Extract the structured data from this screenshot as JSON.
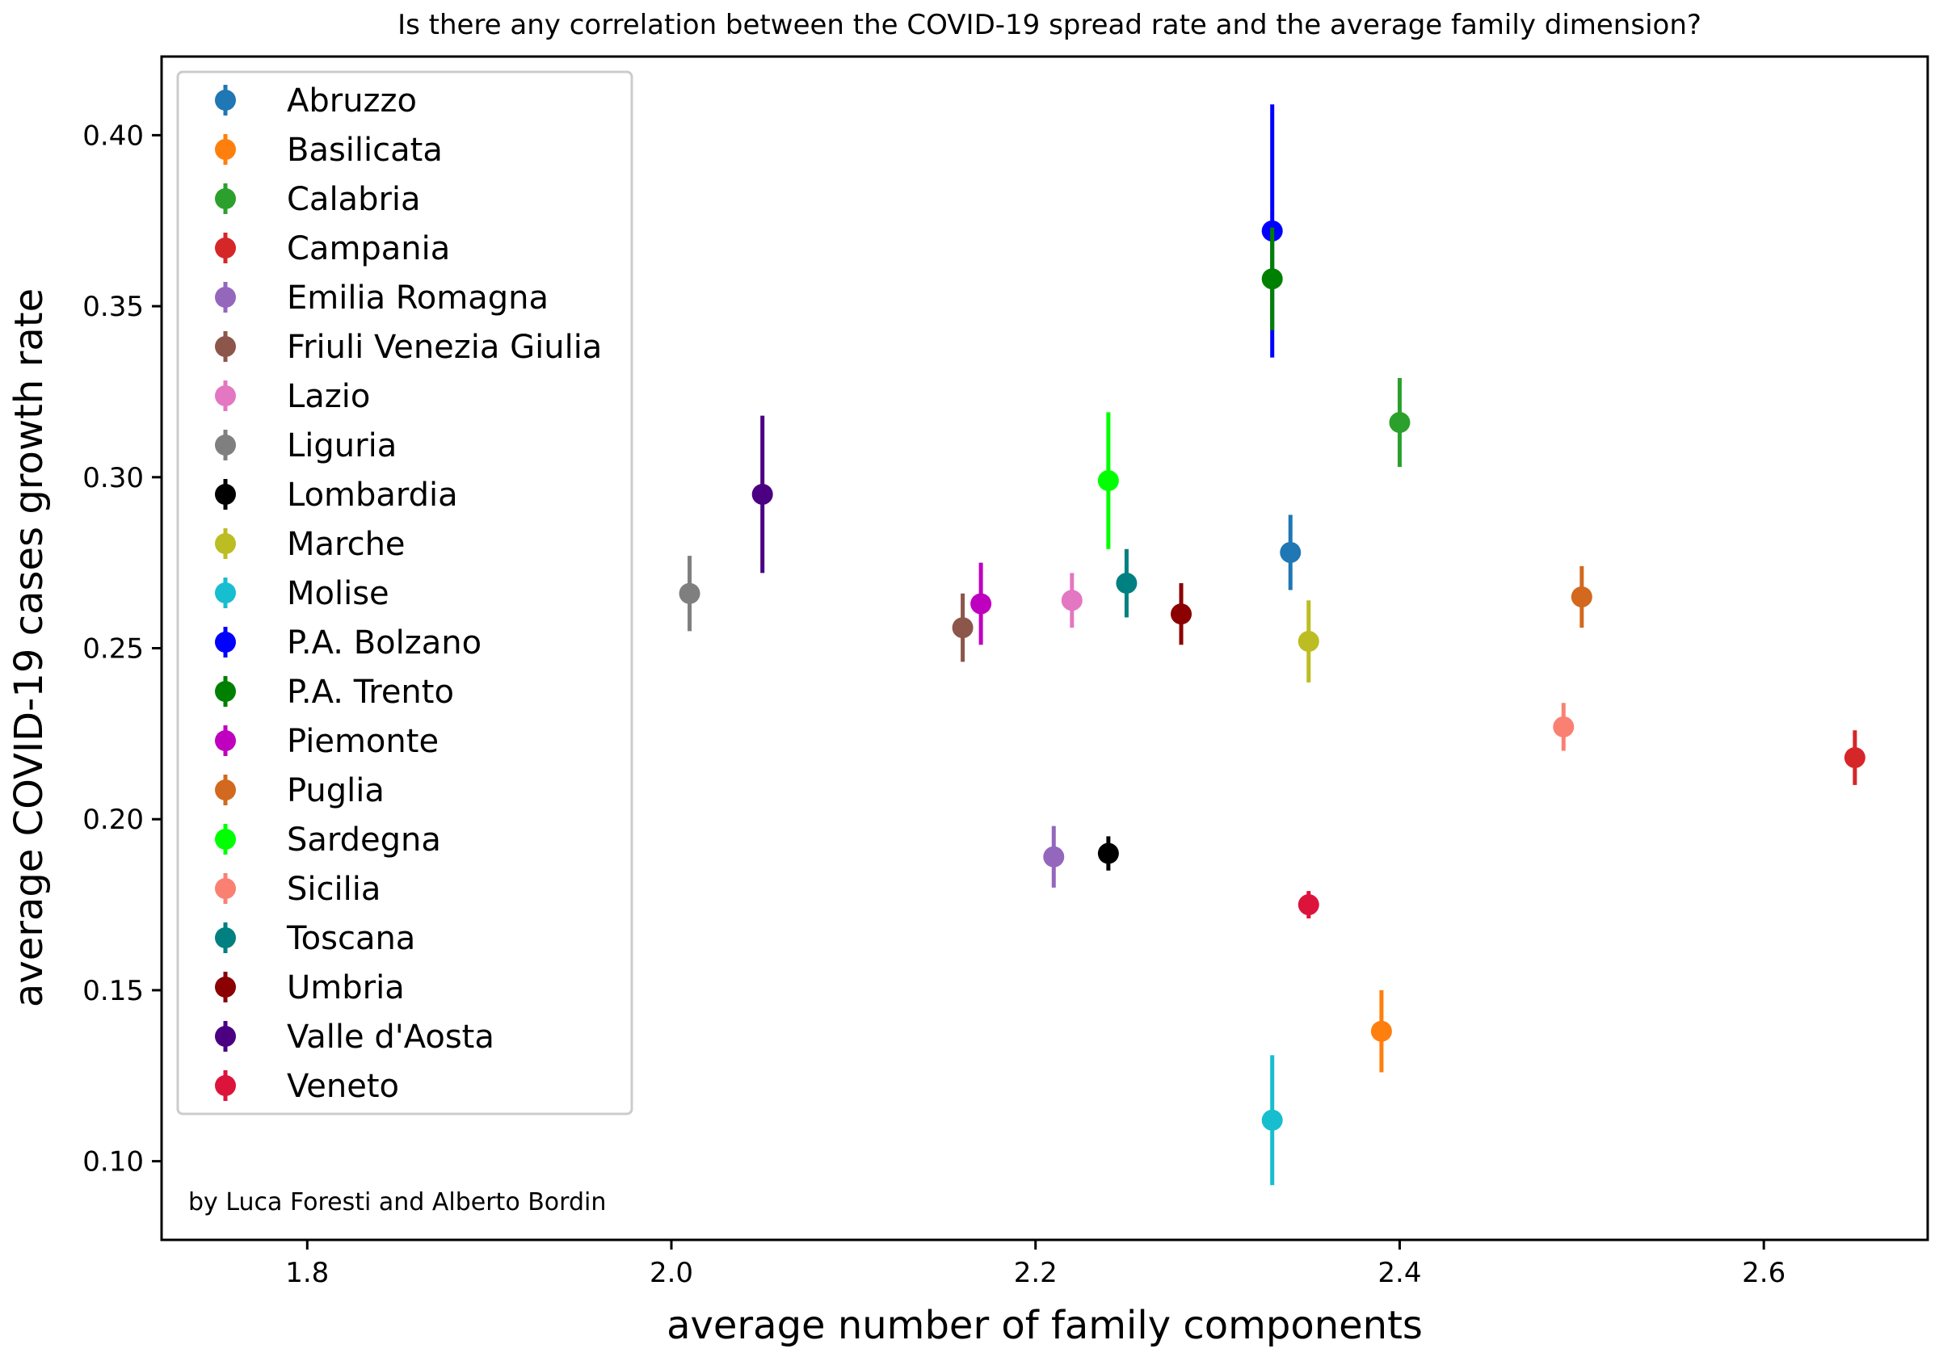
{
  "chart_data": {
    "type": "scatter",
    "title": "Is there any correlation between the COVID-19 spread rate and the average family dimension?",
    "xlabel": "average number of family components",
    "ylabel": "average COVID-19 cases growth rate",
    "xlim": [
      1.72,
      2.69
    ],
    "ylim": [
      0.077,
      0.423
    ],
    "x_ticks": [
      1.8,
      2.0,
      2.2,
      2.4,
      2.6
    ],
    "x_tick_labels": [
      "1.8",
      "2.0",
      "2.2",
      "2.4",
      "2.6"
    ],
    "y_ticks": [
      0.1,
      0.15,
      0.2,
      0.25,
      0.3,
      0.35,
      0.4
    ],
    "y_tick_labels": [
      "0.10",
      "0.15",
      "0.20",
      "0.25",
      "0.30",
      "0.35",
      "0.40"
    ],
    "grid": false,
    "legend_position": "upper-left",
    "annotation": "by Luca Foresti and Alberto Bordin",
    "series": [
      {
        "name": "Abruzzo",
        "color": "#1f77b4",
        "x": 2.34,
        "y": 0.278,
        "err": 0.011
      },
      {
        "name": "Basilicata",
        "color": "#ff7f0e",
        "x": 2.39,
        "y": 0.138,
        "err": 0.012
      },
      {
        "name": "Calabria",
        "color": "#2ca02c",
        "x": 2.4,
        "y": 0.316,
        "err": 0.013
      },
      {
        "name": "Campania",
        "color": "#d62728",
        "x": 2.65,
        "y": 0.218,
        "err": 0.008
      },
      {
        "name": "Emilia Romagna",
        "color": "#9467bd",
        "x": 2.21,
        "y": 0.189,
        "err": 0.009
      },
      {
        "name": "Friuli Venezia Giulia",
        "color": "#8c564b",
        "x": 2.16,
        "y": 0.256,
        "err": 0.01
      },
      {
        "name": "Lazio",
        "color": "#e377c2",
        "x": 2.22,
        "y": 0.264,
        "err": 0.008
      },
      {
        "name": "Liguria",
        "color": "#7f7f7f",
        "x": 2.01,
        "y": 0.266,
        "err": 0.011
      },
      {
        "name": "Lombardia",
        "color": "#000000",
        "x": 2.24,
        "y": 0.19,
        "err": 0.005
      },
      {
        "name": "Marche",
        "color": "#bcbd22",
        "x": 2.35,
        "y": 0.252,
        "err": 0.012
      },
      {
        "name": "Molise",
        "color": "#17becf",
        "x": 2.33,
        "y": 0.112,
        "err": 0.019
      },
      {
        "name": "P.A. Bolzano",
        "color": "#0000ff",
        "x": 2.33,
        "y": 0.372,
        "err": 0.037
      },
      {
        "name": "P.A. Trento",
        "color": "#008000",
        "x": 2.33,
        "y": 0.358,
        "err": 0.015
      },
      {
        "name": "Piemonte",
        "color": "#bf00bf",
        "x": 2.17,
        "y": 0.263,
        "err": 0.012
      },
      {
        "name": "Puglia",
        "color": "#d2691e",
        "x": 2.5,
        "y": 0.265,
        "err": 0.009
      },
      {
        "name": "Sardegna",
        "color": "#00ff00",
        "x": 2.24,
        "y": 0.299,
        "err": 0.02
      },
      {
        "name": "Sicilia",
        "color": "#fa8072",
        "x": 2.49,
        "y": 0.227,
        "err": 0.007
      },
      {
        "name": "Toscana",
        "color": "#008080",
        "x": 2.25,
        "y": 0.269,
        "err": 0.01
      },
      {
        "name": "Umbria",
        "color": "#8b0000",
        "x": 2.28,
        "y": 0.26,
        "err": 0.009
      },
      {
        "name": "Valle d'Aosta",
        "color": "#4b0082",
        "x": 2.05,
        "y": 0.295,
        "err": 0.023
      },
      {
        "name": "Veneto",
        "color": "#dc143c",
        "x": 2.35,
        "y": 0.175,
        "err": 0.004
      }
    ]
  }
}
